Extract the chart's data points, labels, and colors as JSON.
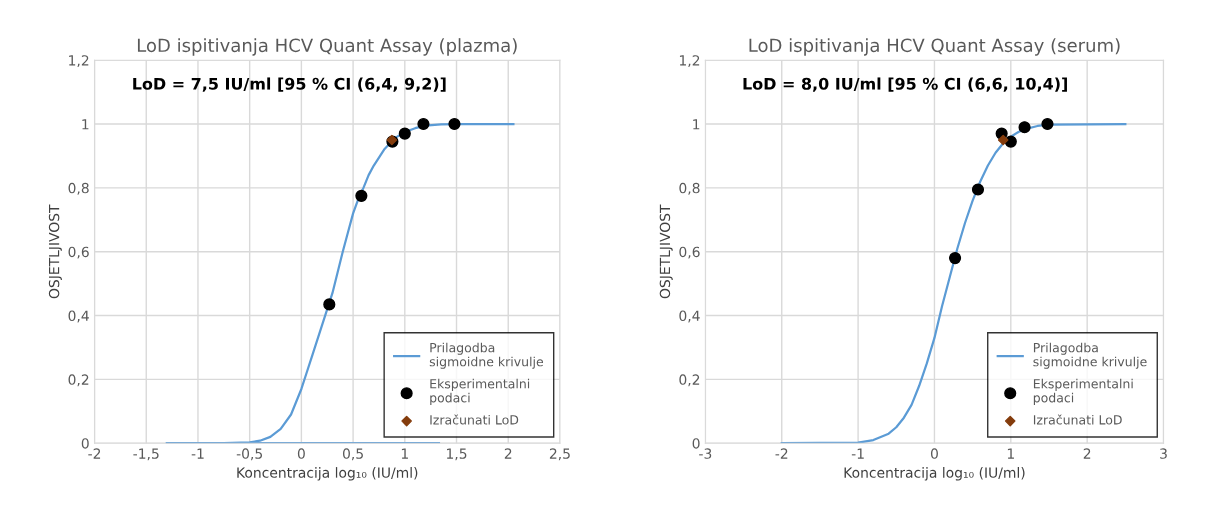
{
  "chart_data": [
    {
      "type": "line",
      "title": "LoD ispitivanja HCV Quant Assay (plazma)",
      "xlabel": "Koncentracija log₁₀ (IU/ml)",
      "ylabel": "OSJETLJIVOST",
      "annotations": [
        "LoD = 7,5 IU/ml [95 % CI (6,4, 9,2)]"
      ],
      "xlim": [
        -2,
        2.5
      ],
      "xticks": [
        -2,
        {
          "value": -1.5,
          "label": "-1,5"
        },
        -1,
        {
          "value": -0.5,
          "label": "-0,5"
        },
        0,
        {
          "value": 0.5,
          "label": "0,5"
        },
        1,
        {
          "value": 1.5,
          "label": "1,5"
        },
        2,
        {
          "value": 2.5,
          "label": "2,5"
        }
      ],
      "ylim": [
        0,
        1.2
      ],
      "yticks": [
        0,
        {
          "value": 0.2,
          "label": "0,2"
        },
        {
          "value": 0.4,
          "label": "0,4"
        },
        {
          "value": 0.6,
          "label": "0,6"
        },
        {
          "value": 0.8,
          "label": "0,8"
        },
        1,
        {
          "value": 1.2,
          "label": "1,2"
        }
      ],
      "grid": true,
      "legend": "bottom right",
      "series": [
        {
          "name": "Prilagodba\nsigmoidne krivulje",
          "color": "#5b9bd5",
          "x": [
            -1.3,
            -0.75,
            -0.5,
            -0.4,
            -0.3,
            -0.2,
            -0.1,
            0,
            0.05,
            0.1,
            0.15,
            0.2,
            0.25,
            0.3,
            0.35,
            0.4,
            0.45,
            0.5,
            0.55,
            0.6,
            0.65,
            0.7,
            0.8,
            0.9,
            1.0,
            1.1,
            1.2,
            1.35,
            1.5,
            2.05
          ],
          "values": [
            0,
            0.0,
            0.003,
            0.008,
            0.02,
            0.045,
            0.09,
            0.17,
            0.22,
            0.27,
            0.32,
            0.37,
            0.42,
            0.47,
            0.535,
            0.6,
            0.66,
            0.72,
            0.765,
            0.8,
            0.84,
            0.87,
            0.92,
            0.955,
            0.975,
            0.987,
            0.995,
            0.999,
            1.0,
            1.0
          ]
        },
        {
          "color": "#5b9bd5",
          "x": [
            -1.3,
            1.33
          ],
          "values": [
            0,
            0
          ]
        },
        {
          "name": "Eksperimentalni\npodaci",
          "type": "scatter",
          "marker": "circle",
          "color": "#000000",
          "x": [
            0.27,
            0.58,
            0.88,
            1.0,
            1.18,
            1.48
          ],
          "values": [
            0.435,
            0.775,
            0.945,
            0.97,
            1.0,
            1.0
          ]
        },
        {
          "name": "Izračunati LoD",
          "type": "scatter",
          "marker": "diamond",
          "color": "#843c0c",
          "x": [
            0.875
          ],
          "values": [
            0.95
          ]
        }
      ]
    },
    {
      "type": "line",
      "title": "LoD ispitivanja HCV Quant Assay (serum)",
      "xlabel": "Koncentracija log₁₀ (IU/ml)",
      "ylabel": "OSJETLJIVOST",
      "annotations": [
        "LoD = 8,0 IU/ml [95 % CI (6,6, 10,4)]"
      ],
      "xlim": [
        -3,
        3
      ],
      "xticks": [
        -3,
        -2,
        -1,
        0,
        1,
        2,
        3
      ],
      "ylim": [
        0,
        1.2
      ],
      "yticks": [
        0,
        {
          "value": 0.2,
          "label": "0,2"
        },
        {
          "value": 0.4,
          "label": "0,4"
        },
        {
          "value": 0.6,
          "label": "0,6"
        },
        {
          "value": 0.8,
          "label": "0,8"
        },
        1,
        {
          "value": 1.2,
          "label": "1,2"
        }
      ],
      "grid": true,
      "legend": "bottom right",
      "series": [
        {
          "name": "Prilagodba\nsigmoidne krivulje",
          "color": "#5b9bd5",
          "x": [
            -2,
            -1,
            -0.8,
            -0.6,
            -0.5,
            -0.4,
            -0.3,
            -0.2,
            -0.1,
            0,
            0.1,
            0.2,
            0.3,
            0.4,
            0.5,
            0.6,
            0.7,
            0.8,
            0.9,
            1.0,
            1.1,
            1.2,
            1.35,
            1.5,
            2.5
          ],
          "values": [
            0,
            0.002,
            0.01,
            0.03,
            0.05,
            0.08,
            0.12,
            0.18,
            0.25,
            0.33,
            0.43,
            0.52,
            0.61,
            0.69,
            0.76,
            0.82,
            0.87,
            0.91,
            0.94,
            0.96,
            0.975,
            0.985,
            0.994,
            0.998,
            1.0
          ]
        },
        {
          "name": "Eksperimentalni\npodaci",
          "type": "scatter",
          "marker": "circle",
          "color": "#000000",
          "x": [
            0.27,
            0.57,
            0.88,
            1.0,
            1.18,
            1.48
          ],
          "values": [
            0.58,
            0.795,
            0.97,
            0.945,
            0.99,
            1.0
          ]
        },
        {
          "name": "Izračunati LoD",
          "type": "scatter",
          "marker": "diamond",
          "color": "#843c0c",
          "x": [
            0.9
          ],
          "values": [
            0.95
          ]
        }
      ]
    }
  ]
}
